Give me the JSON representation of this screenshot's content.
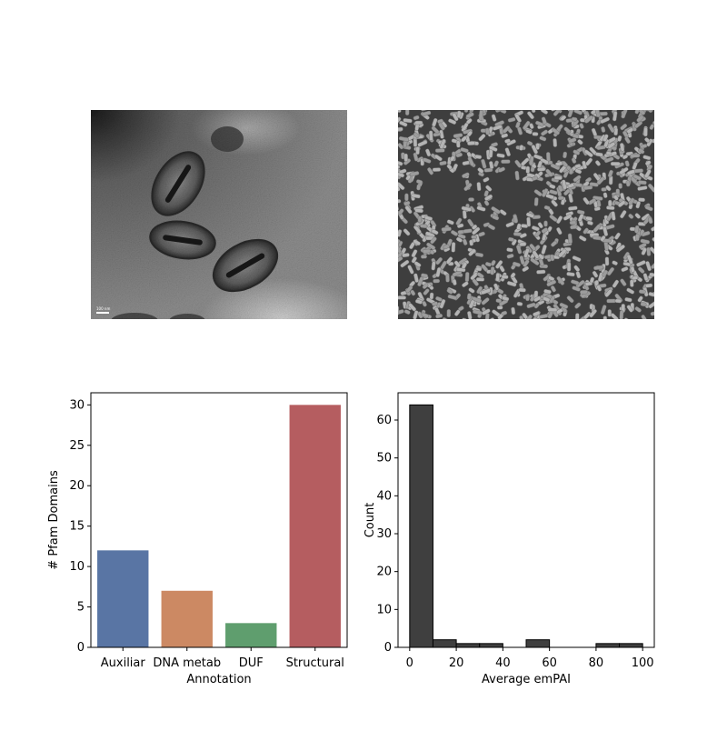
{
  "images": {
    "tem": {
      "scale_bar_label": "100 nm",
      "palette": [
        "#8f8f8f",
        "#6f6f6f",
        "#4c4c4c",
        "#2a2a2a",
        "#1a1a1a",
        "#d2d2d2"
      ]
    },
    "sem": {
      "palette": [
        "#3f3f3f",
        "#9a9a9a",
        "#b8b8b8"
      ]
    }
  },
  "chart_data": [
    {
      "type": "bar",
      "title": "",
      "xlabel": "Annotation",
      "ylabel": "# Pfam Domains",
      "categories": [
        "Auxiliar",
        "DNA metab",
        "DUF",
        "Structural"
      ],
      "values": [
        12,
        7,
        3,
        30
      ],
      "colors": [
        "#5975a4",
        "#cc8963",
        "#5f9e6e",
        "#b55d60"
      ],
      "ylim": [
        0,
        31.5
      ],
      "yticks": [
        0,
        5,
        10,
        15,
        20,
        25,
        30
      ],
      "grid": false,
      "legend": "none"
    },
    {
      "type": "bar",
      "subtype": "histogram",
      "title": "",
      "xlabel": "Average emPAI",
      "ylabel": "Count",
      "bins": [
        {
          "x0": 0,
          "x1": 10,
          "count": 64
        },
        {
          "x0": 10,
          "x1": 20,
          "count": 2
        },
        {
          "x0": 20,
          "x1": 30,
          "count": 1
        },
        {
          "x0": 30,
          "x1": 40,
          "count": 1
        },
        {
          "x0": 40,
          "x1": 50,
          "count": 0
        },
        {
          "x0": 50,
          "x1": 60,
          "count": 2
        },
        {
          "x0": 60,
          "x1": 70,
          "count": 0
        },
        {
          "x0": 70,
          "x1": 80,
          "count": 0
        },
        {
          "x0": 80,
          "x1": 90,
          "count": 1
        },
        {
          "x0": 90,
          "x1": 100,
          "count": 1
        }
      ],
      "color": "#3f3f3f",
      "edge_color": "#000000",
      "xlim": [
        -5,
        105
      ],
      "ylim": [
        0,
        67.2
      ],
      "xticks": [
        0,
        20,
        40,
        60,
        80,
        100
      ],
      "yticks": [
        0,
        10,
        20,
        30,
        40,
        50,
        60
      ],
      "grid": false,
      "legend": "none"
    }
  ]
}
